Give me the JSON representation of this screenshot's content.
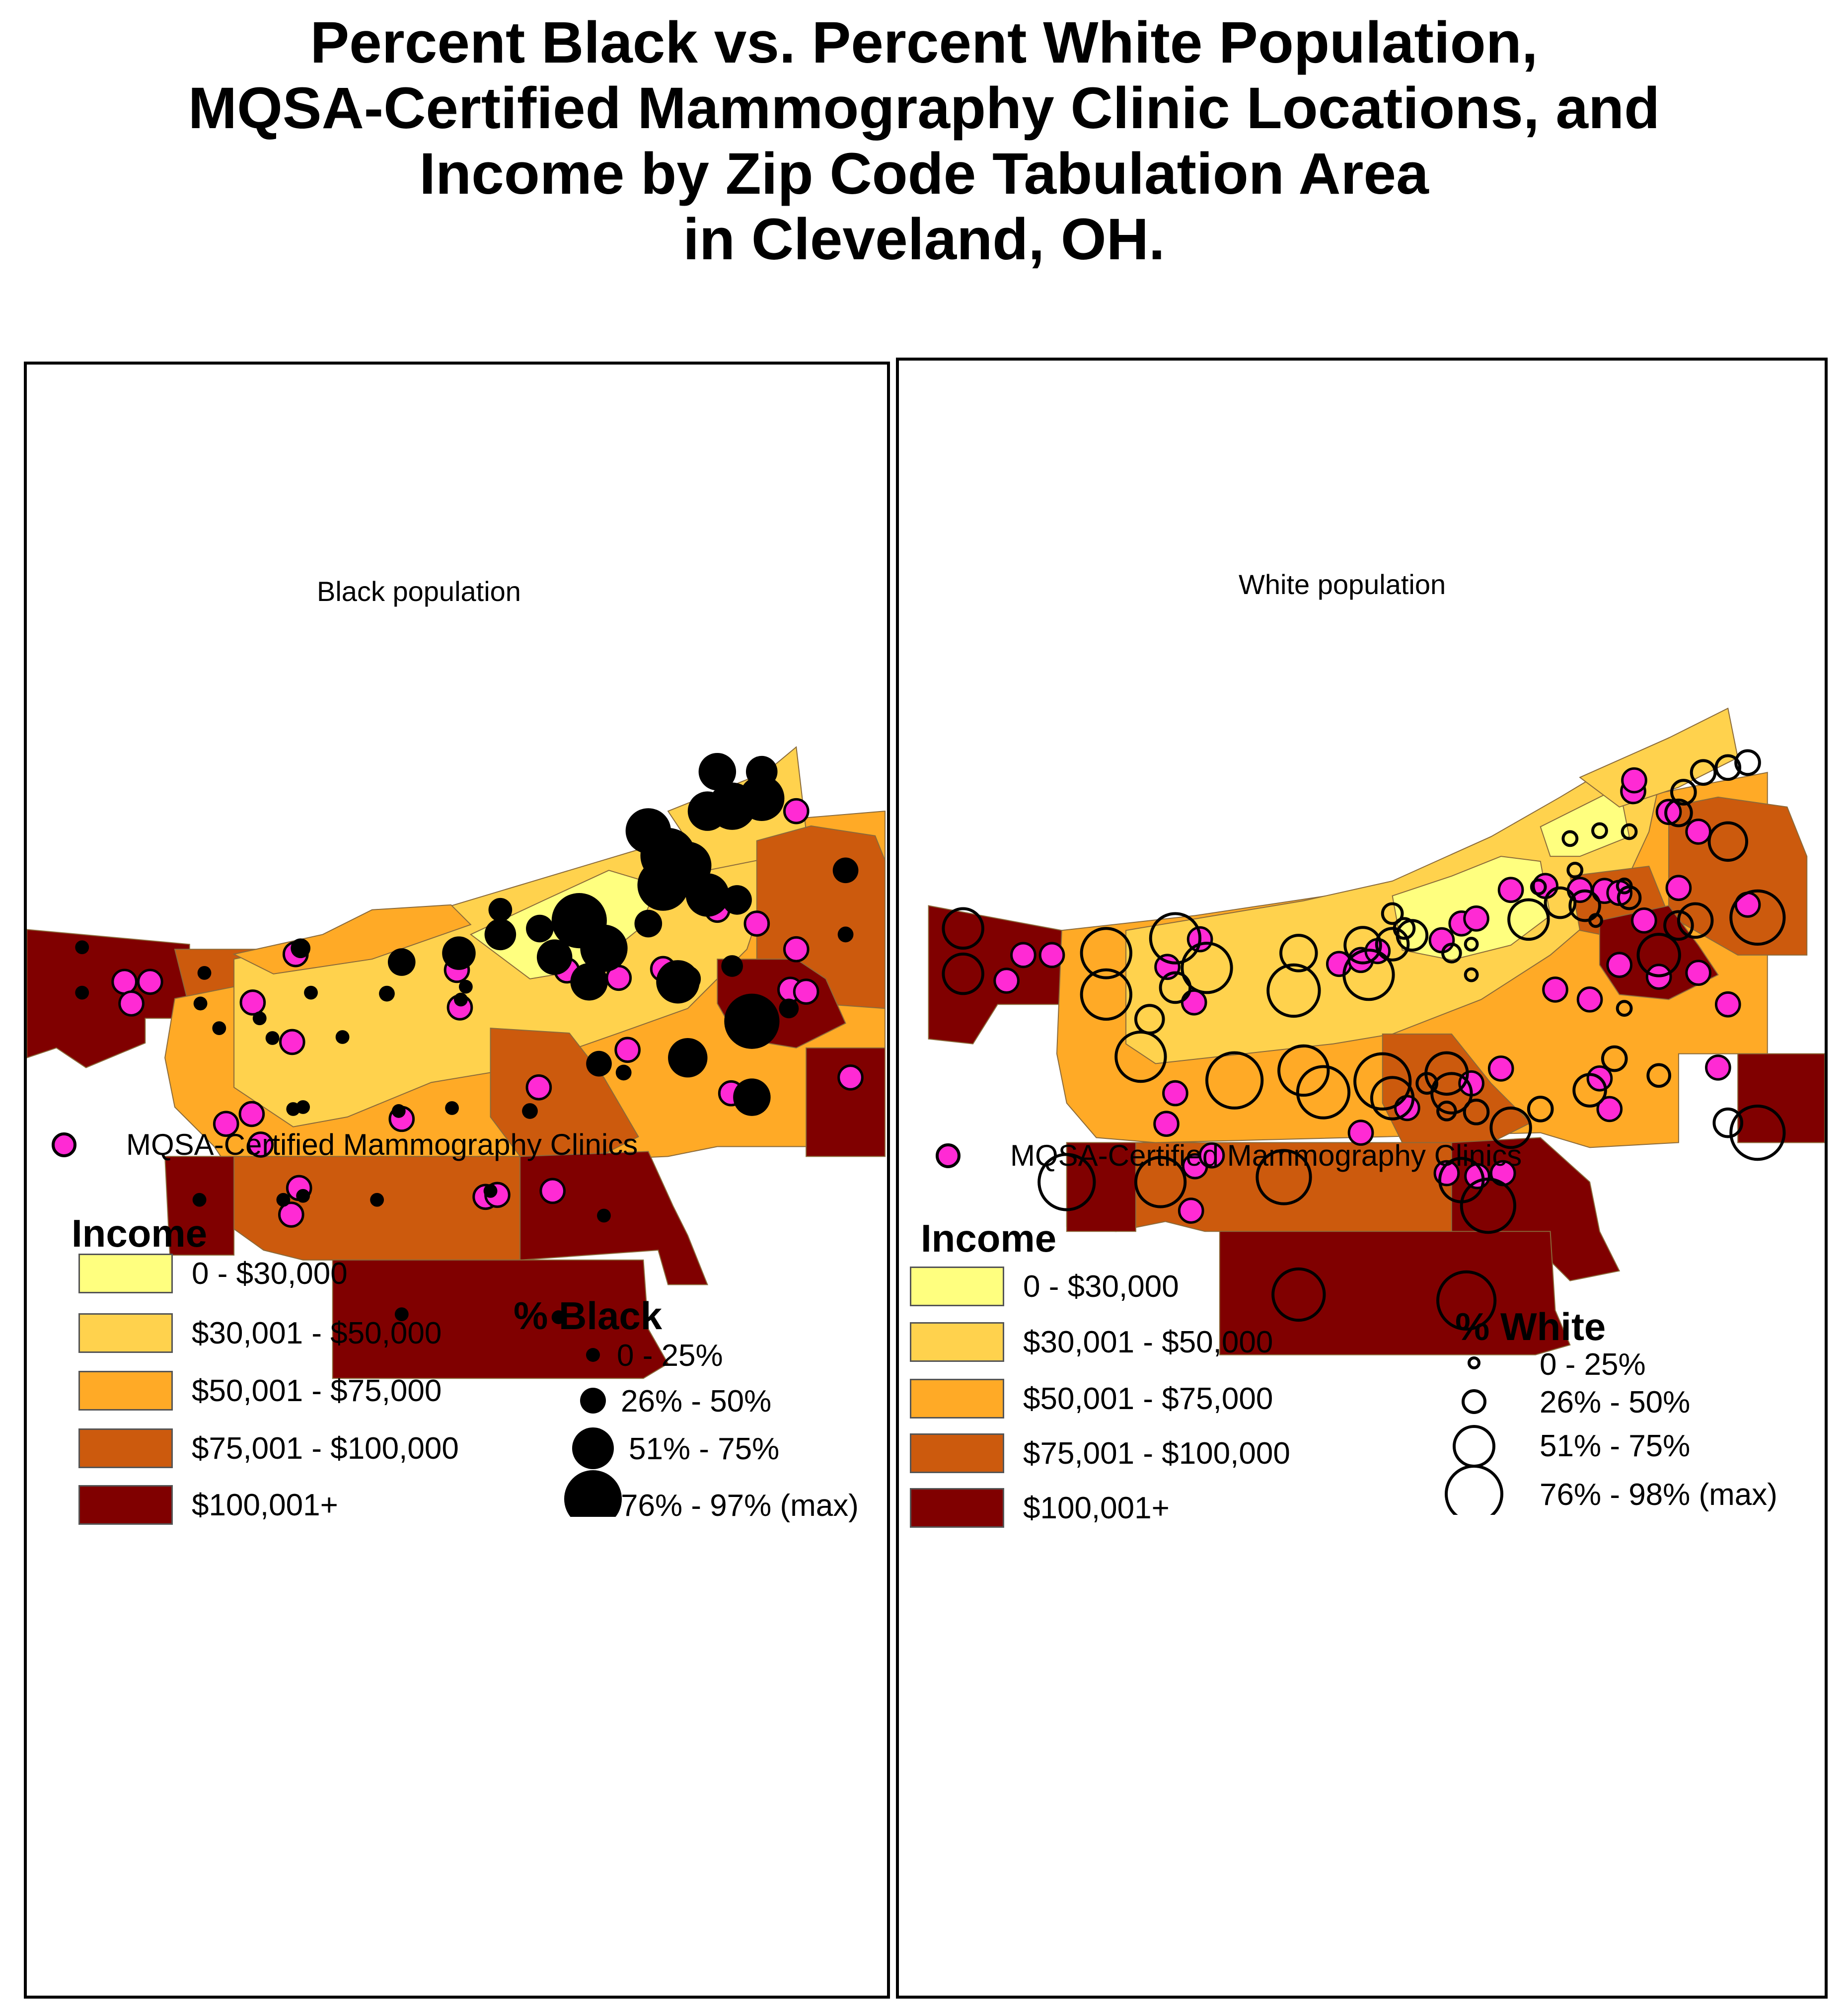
{
  "title": {
    "line1": "Percent Black vs. Percent White Population,",
    "line2": "MQSA-Certified Mammography Clinic Locations, and",
    "line3": "Income by Zip Code Tabulation Area",
    "line4": "in Cleveland, OH."
  },
  "colors": {
    "income_0_30k": "#ffff7f",
    "income_30_50k": "#ffd24d",
    "income_50_75k": "#ffaa26",
    "income_75_100k": "#cc5a0d",
    "income_100k_plus": "#800000",
    "clinic": "#ff2ad4",
    "black_symbol": "#000000"
  },
  "left_map": {
    "label": "Black population",
    "clinic_legend": "MQSA-Certified Mammography Clinics",
    "income_title": "Income",
    "income_classes": [
      "0 - $30,000",
      "$30,001 - $50,000",
      "$50,001 - $75,000",
      "$75,001 - $100,000",
      "$100,001+"
    ],
    "size_title": "% Black",
    "size_classes": [
      "0 - 25%",
      "26% - 50%",
      "51% - 75%",
      "76% - 97% (max)"
    ]
  },
  "right_map": {
    "label": "White population",
    "clinic_legend": "MQSA-Certified Mammography Clinics",
    "income_title": "Income",
    "income_classes": [
      "0 - $30,000",
      "$30,001 - $50,000",
      "$50,001 - $75,000",
      "$75,001 - $100,000",
      "$100,001+"
    ],
    "size_title": "% White",
    "size_classes": [
      "0 - 25%",
      "26% - 50%",
      "51% - 75%",
      "76% - 98% (max)"
    ]
  }
}
